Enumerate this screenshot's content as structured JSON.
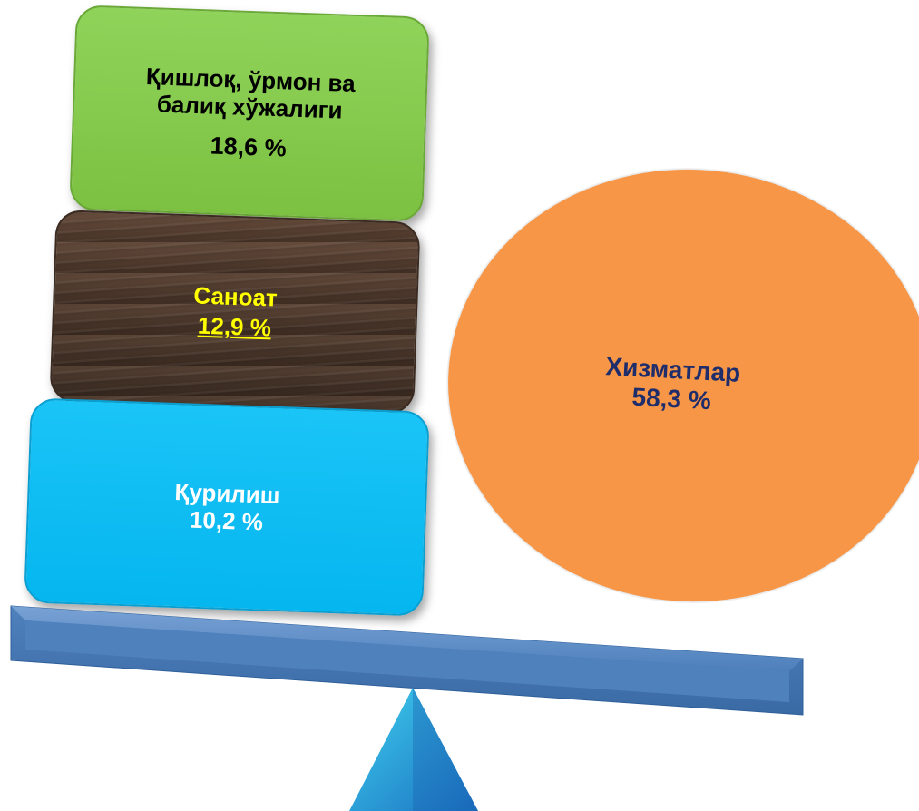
{
  "sectors": {
    "agriculture": {
      "name_line1": "Қишлоқ, ўрмон ва",
      "name_line2": "балиқ хўжалиги",
      "value": "18,6 %"
    },
    "industry": {
      "name": "Саноат",
      "value": "12,9 %"
    },
    "construction": {
      "name": "Қурилиш",
      "value": "10,2 %"
    },
    "services": {
      "name": "Хизматлар",
      "value": "58,3 %"
    }
  },
  "colors": {
    "agriculture": "#7dc142",
    "industry": "#4b372b",
    "construction": "#05b6ef",
    "services": "#f79646",
    "beam": "#4f81bd",
    "fulcrum": "#1fa8d8"
  }
}
